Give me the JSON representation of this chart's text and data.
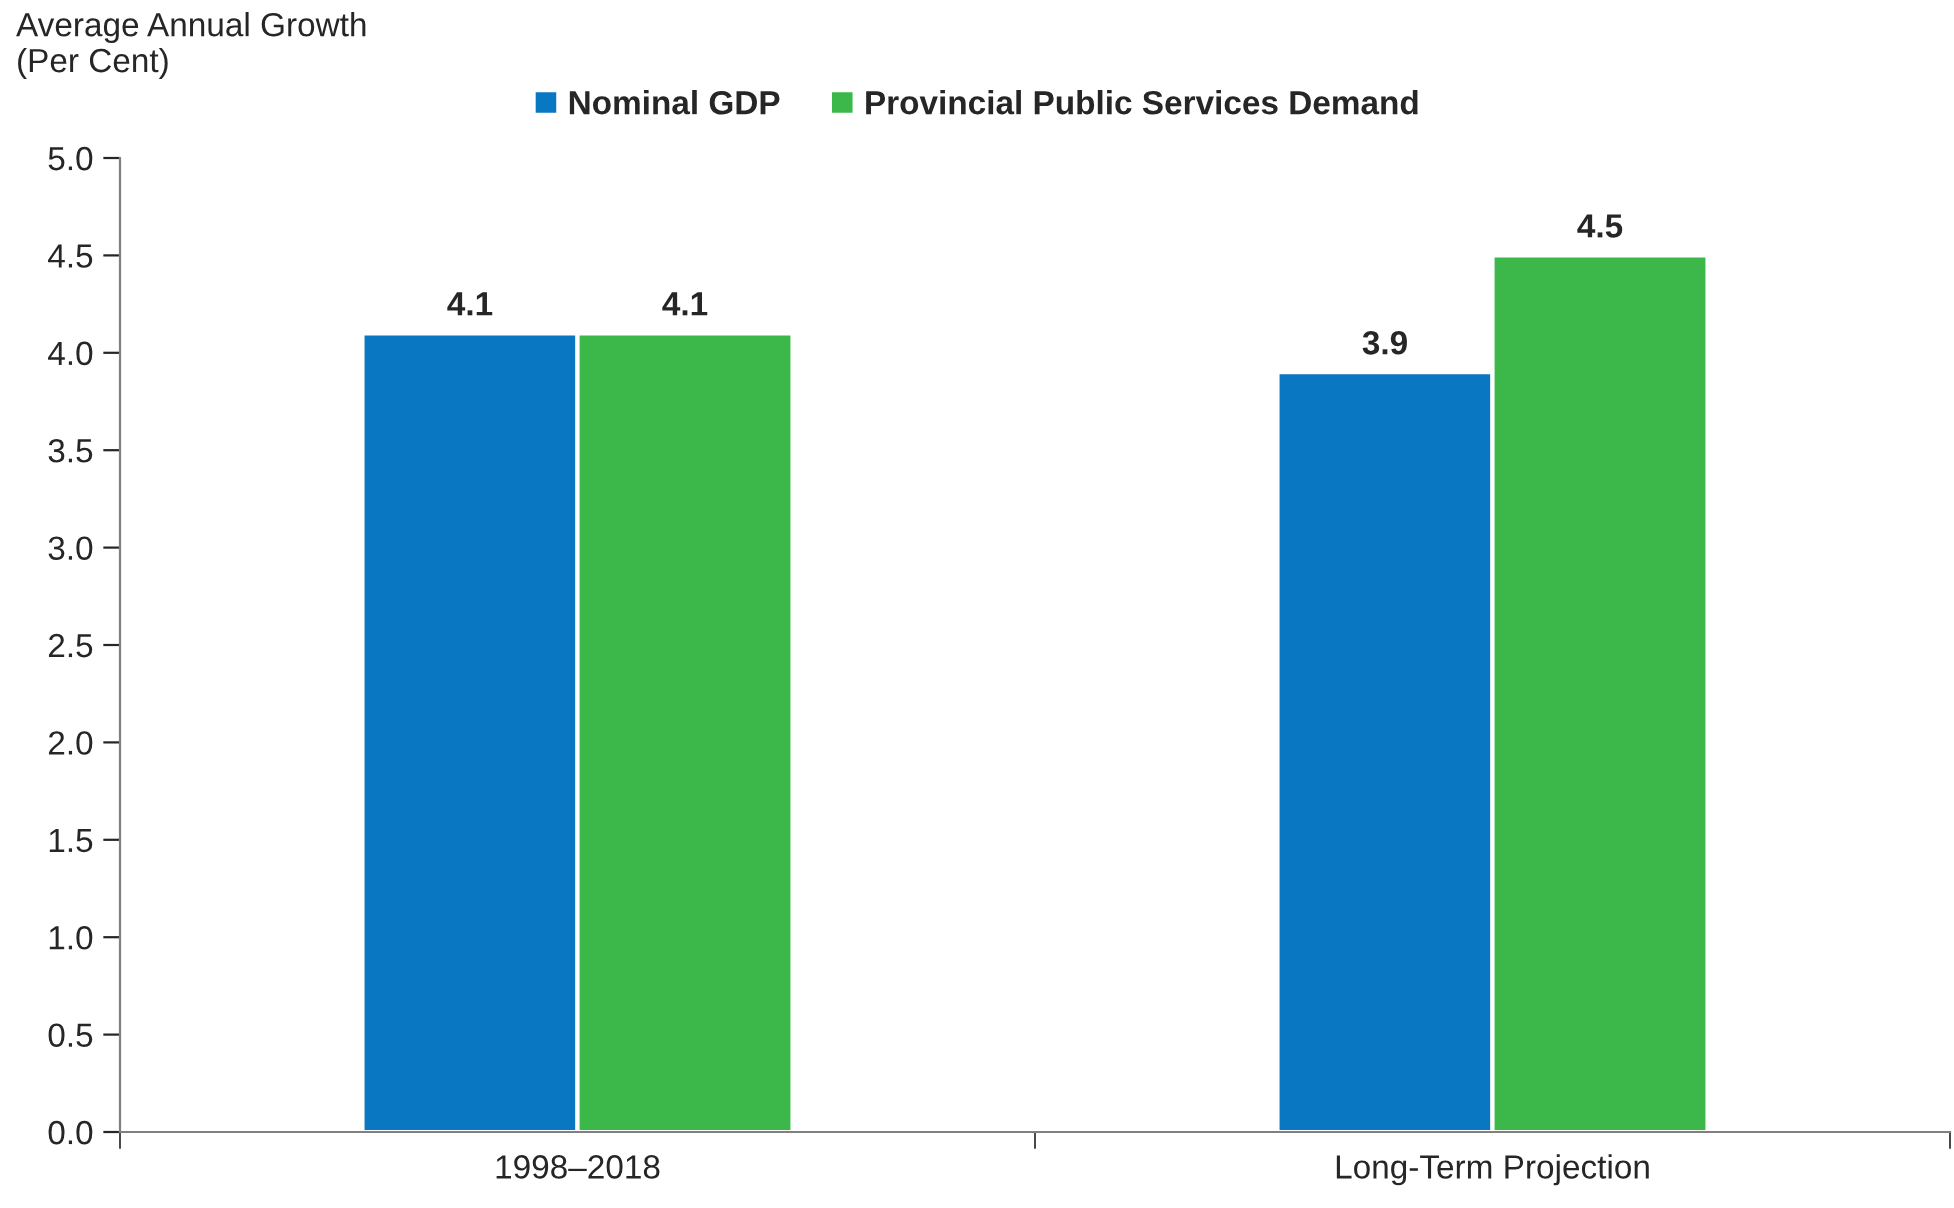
{
  "chart_data": {
    "type": "bar",
    "ylabel": "Average Annual Growth\n(Per Cent)",
    "categories": [
      "1998–2018",
      "Long-Term Projection"
    ],
    "series": [
      {
        "name": "Nominal GDP",
        "color": "#0a77c3",
        "values": [
          4.1,
          3.9
        ]
      },
      {
        "name": "Provincial Public Services Demand",
        "color": "#3cb84a",
        "values": [
          4.1,
          4.5
        ]
      }
    ],
    "ylim": [
      0,
      5
    ],
    "yticks": [
      {
        "value": 0,
        "label": "0.0"
      },
      0.5,
      {
        "value": 1,
        "label": "1.0"
      },
      1.5,
      {
        "value": 2,
        "label": "2.0"
      },
      2.5,
      {
        "value": 3,
        "label": "3.0"
      },
      3.5,
      {
        "value": 4,
        "label": "4.0"
      },
      4.5,
      {
        "value": 5,
        "label": "5.0"
      }
    ],
    "data_labels": true,
    "grid": false,
    "legend": "top"
  }
}
